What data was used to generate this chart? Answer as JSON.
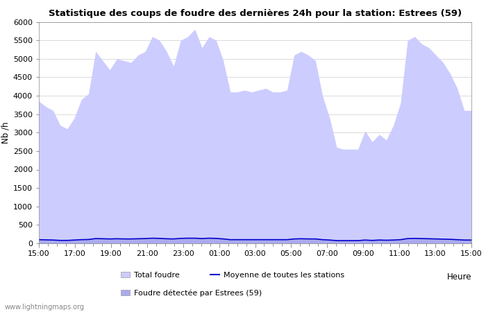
{
  "title": "Statistique des coups de foudre des dernières 24h pour la station: Estrees (59)",
  "xlabel": "Heure",
  "ylabel": "Nb /h",
  "ylim": [
    0,
    6000
  ],
  "yticks": [
    0,
    500,
    1000,
    1500,
    2000,
    2500,
    3000,
    3500,
    4000,
    4500,
    5000,
    5500,
    6000
  ],
  "xtick_labels": [
    "15:00",
    "17:00",
    "19:00",
    "21:00",
    "23:00",
    "01:00",
    "03:00",
    "05:00",
    "07:00",
    "09:00",
    "11:00",
    "13:00",
    "15:00"
  ],
  "watermark": "www.lightningmaps.org",
  "color_total": "#ccccff",
  "color_detected": "#aaaaee",
  "color_moyenne": "#0000cc",
  "total_foudre": [
    3850,
    3700,
    3600,
    3200,
    3100,
    3400,
    3900,
    4050,
    5200,
    4950,
    4700,
    5000,
    4950,
    4900,
    5100,
    5200,
    5600,
    5500,
    5200,
    4800,
    5500,
    5600,
    5800,
    5300,
    5600,
    5500,
    4950,
    4100,
    4100,
    4150,
    4100,
    4150,
    4200,
    4100,
    4100,
    4150,
    5100,
    5200,
    5100,
    4950,
    4000,
    3400,
    2600,
    2550,
    2550,
    2550,
    3050,
    2750,
    2950,
    2800,
    3200,
    3800,
    5500,
    5600,
    5400,
    5300,
    5100,
    4900,
    4600,
    4200,
    3600,
    3600
  ],
  "detected": [
    100,
    95,
    90,
    80,
    80,
    90,
    100,
    105,
    130,
    125,
    120,
    125,
    120,
    120,
    125,
    130,
    140,
    135,
    125,
    120,
    135,
    140,
    140,
    130,
    140,
    135,
    120,
    100,
    100,
    100,
    100,
    100,
    100,
    100,
    100,
    100,
    120,
    125,
    120,
    120,
    100,
    90,
    75,
    75,
    75,
    75,
    90,
    80,
    90,
    85,
    90,
    100,
    130,
    135,
    130,
    125,
    120,
    115,
    110,
    100,
    90,
    90
  ],
  "moyenne": [
    100,
    95,
    90,
    80,
    80,
    90,
    100,
    105,
    130,
    125,
    120,
    125,
    120,
    120,
    125,
    130,
    140,
    135,
    125,
    120,
    135,
    140,
    140,
    130,
    140,
    135,
    120,
    100,
    100,
    100,
    100,
    100,
    100,
    100,
    100,
    100,
    120,
    125,
    120,
    120,
    100,
    90,
    75,
    75,
    75,
    75,
    90,
    80,
    90,
    85,
    90,
    100,
    130,
    135,
    130,
    125,
    120,
    115,
    110,
    100,
    90,
    90
  ]
}
